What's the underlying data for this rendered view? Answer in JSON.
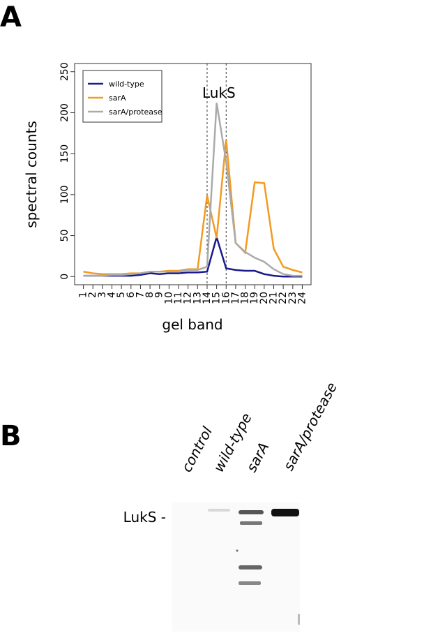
{
  "panels": [
    "A",
    "B"
  ],
  "chart_data": {
    "type": "line",
    "annotation": "LukS",
    "xlabel": "gel band",
    "ylabel": "spectral counts",
    "x": [
      1,
      2,
      3,
      4,
      5,
      6,
      7,
      8,
      9,
      10,
      11,
      12,
      13,
      14,
      15,
      16,
      17,
      18,
      19,
      20,
      21,
      22,
      23,
      24
    ],
    "xticks": [
      1,
      2,
      3,
      4,
      5,
      6,
      7,
      8,
      9,
      10,
      11,
      12,
      13,
      14,
      15,
      16,
      17,
      18,
      19,
      20,
      21,
      22,
      23,
      24
    ],
    "xlim": [
      0.08,
      24.92
    ],
    "ylim": [
      -10,
      260
    ],
    "yticks": [
      0,
      50,
      100,
      150,
      200,
      250
    ],
    "vlines": [
      14,
      16
    ],
    "legend": "top-left",
    "series": [
      {
        "name": "wild-type",
        "color": "#1a1a8c",
        "values": [
          1,
          1,
          1,
          1,
          1,
          1,
          2,
          4,
          3,
          4,
          4,
          5,
          5,
          6,
          48,
          10,
          8,
          7,
          7,
          3,
          1,
          0,
          0,
          0
        ]
      },
      {
        "name": "sarA",
        "color": "#f39a21",
        "values": [
          6,
          4,
          3,
          3,
          3,
          4,
          4,
          6,
          6,
          7,
          7,
          9,
          9,
          99,
          47,
          167,
          41,
          29,
          115,
          114,
          34,
          12,
          8,
          5
        ]
      },
      {
        "name": "sarA/protease",
        "color": "#aaaaaa",
        "values": [
          1,
          1,
          1,
          2,
          2,
          3,
          4,
          6,
          6,
          6,
          6,
          8,
          8,
          12,
          212,
          140,
          41,
          30,
          23,
          18,
          9,
          3,
          1,
          1
        ]
      }
    ]
  },
  "blot": {
    "lanes": [
      "control",
      "wild-type",
      "sarA",
      "sarA/protease"
    ],
    "marker": "LukS -"
  }
}
